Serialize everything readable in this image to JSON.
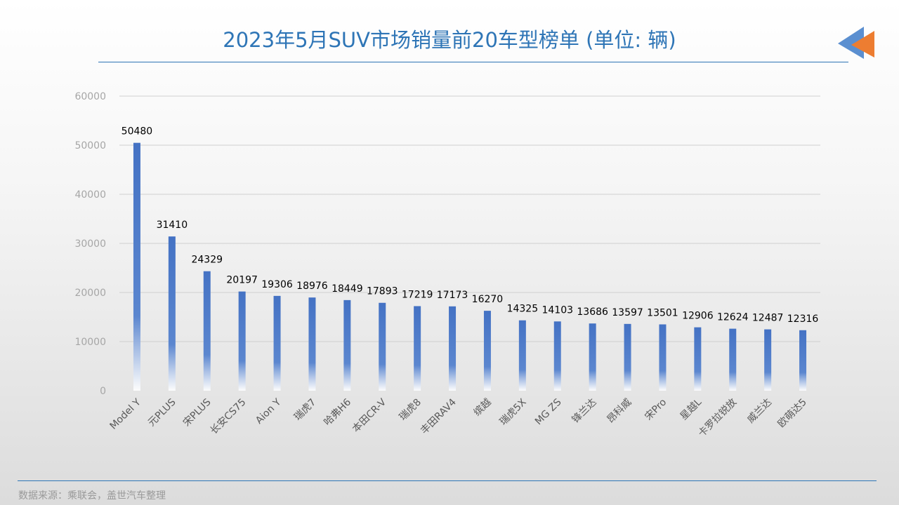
{
  "title": "2023年5月SUV市场销量前20车型榜单 (单位: 辆)",
  "source": "数据来源：乘联会，盖世汽车整理",
  "colors": {
    "title": "#2e75b6",
    "bar": "#4472c4",
    "arrow_blue": "#5b8fd0",
    "arrow_orange": "#ed7d31"
  },
  "chart_data": {
    "type": "bar",
    "title": "2023年5月SUV市场销量前20车型榜单 (单位: 辆)",
    "categories": [
      "Model Y",
      "元PLUS",
      "宋PLUS",
      "长安CS75",
      "Aion Y",
      "瑞虎7",
      "哈弗H6",
      "本田CR-V",
      "瑞虎8",
      "丰田RAV4",
      "缤越",
      "瑞虎5X",
      "MG ZS",
      "锋兰达",
      "昂科威",
      "宋Pro",
      "星越L",
      "卡罗拉锐放",
      "威兰达",
      "欧萌达5"
    ],
    "values": [
      50480,
      31410,
      24329,
      20197,
      19306,
      18976,
      18449,
      17893,
      17219,
      17173,
      16270,
      14325,
      14103,
      13686,
      13597,
      13501,
      12906,
      12624,
      12487,
      12316
    ],
    "yticks": [
      0,
      10000,
      20000,
      30000,
      40000,
      50000,
      60000
    ],
    "ylim": [
      0,
      60000
    ],
    "grid": true,
    "data_labels": true
  }
}
